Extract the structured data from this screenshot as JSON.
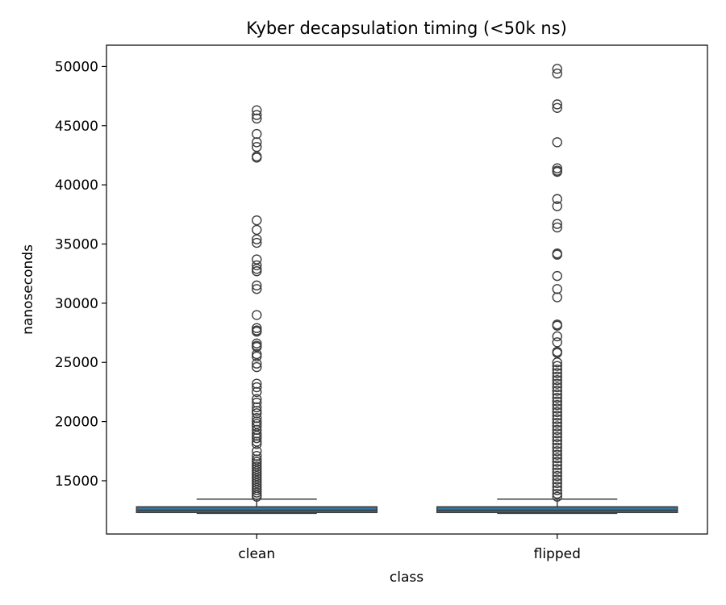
{
  "chart_data": {
    "type": "box",
    "title": "Kyber decapsulation timing (<50k ns)",
    "xlabel": "class",
    "ylabel": "nanoseconds",
    "categories": [
      "clean",
      "flipped"
    ],
    "ylim": [
      10500,
      51800
    ],
    "yticks": [
      15000,
      20000,
      25000,
      30000,
      35000,
      40000,
      45000,
      50000
    ],
    "grid": false,
    "box_color": "#3274a1",
    "line_color": "#3d3d3d",
    "series": [
      {
        "name": "clean",
        "whisker_low": 12250,
        "q1": 12320,
        "median": 12500,
        "q3": 12800,
        "whisker_high": 13450,
        "outliers": [
          46300,
          45900,
          45600,
          44300,
          43600,
          43200,
          42400,
          42300,
          37000,
          36200,
          35400,
          35100,
          33700,
          33200,
          32900,
          32700,
          31500,
          31200,
          29000,
          27900,
          27700,
          27600,
          26600,
          26400,
          26300,
          25700,
          25500,
          24900,
          24600,
          23200,
          22900,
          22500,
          21900,
          21600,
          21200,
          20900,
          20700,
          20300,
          20000,
          19800,
          19600,
          19300,
          19000,
          18800,
          18600,
          18300,
          18100,
          17500,
          17100,
          16800,
          16600,
          16400,
          16200,
          16000,
          15800,
          15600,
          15400,
          15200,
          15000,
          14800,
          14600,
          14400,
          14200,
          14000,
          13800,
          13650
        ]
      },
      {
        "name": "flipped",
        "whisker_low": 12250,
        "q1": 12320,
        "median": 12500,
        "q3": 12800,
        "whisker_high": 13450,
        "outliers": [
          49800,
          49400,
          46800,
          46500,
          43600,
          41400,
          41200,
          41100,
          38800,
          38200,
          36700,
          36400,
          34200,
          34100,
          32300,
          31200,
          30500,
          28200,
          28100,
          27200,
          26700,
          25900,
          25800,
          25000,
          24700,
          24400,
          24100,
          23800,
          23500,
          23200,
          22900,
          22600,
          22300,
          22000,
          21700,
          21400,
          21100,
          20800,
          20500,
          20200,
          19900,
          19600,
          19300,
          19000,
          18700,
          18400,
          18100,
          17800,
          17500,
          17200,
          16900,
          16600,
          16300,
          16000,
          15700,
          15400,
          15100,
          14800,
          14500,
          14200,
          13900,
          13650
        ]
      }
    ]
  }
}
